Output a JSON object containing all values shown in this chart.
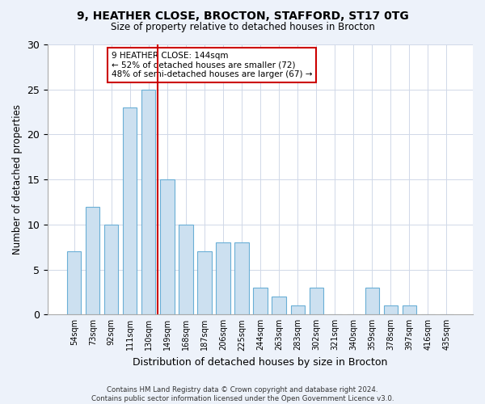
{
  "title1": "9, HEATHER CLOSE, BROCTON, STAFFORD, ST17 0TG",
  "title2": "Size of property relative to detached houses in Brocton",
  "xlabel": "Distribution of detached houses by size in Brocton",
  "ylabel": "Number of detached properties",
  "categories": [
    "54sqm",
    "73sqm",
    "92sqm",
    "111sqm",
    "130sqm",
    "149sqm",
    "168sqm",
    "187sqm",
    "206sqm",
    "225sqm",
    "244sqm",
    "263sqm",
    "283sqm",
    "302sqm",
    "321sqm",
    "340sqm",
    "359sqm",
    "378sqm",
    "397sqm",
    "416sqm",
    "435sqm"
  ],
  "values": [
    7,
    12,
    10,
    23,
    25,
    15,
    10,
    7,
    8,
    8,
    3,
    2,
    1,
    3,
    0,
    0,
    3,
    1,
    1,
    0,
    0
  ],
  "bar_color": "#cce0f0",
  "bar_edge_color": "#6aafd6",
  "vline_color": "#cc0000",
  "vline_x": 4.5,
  "annotation_text": "9 HEATHER CLOSE: 144sqm\n← 52% of detached houses are smaller (72)\n48% of semi-detached houses are larger (67) →",
  "annotation_box_color": "#ffffff",
  "annotation_box_edge_color": "#cc0000",
  "ylim": [
    0,
    30
  ],
  "yticks": [
    0,
    5,
    10,
    15,
    20,
    25,
    30
  ],
  "footer_text": "Contains HM Land Registry data © Crown copyright and database right 2024.\nContains public sector information licensed under the Open Government Licence v3.0.",
  "bg_color": "#edf2fa",
  "plot_bg_color": "#ffffff",
  "grid_color": "#d0d8e8"
}
